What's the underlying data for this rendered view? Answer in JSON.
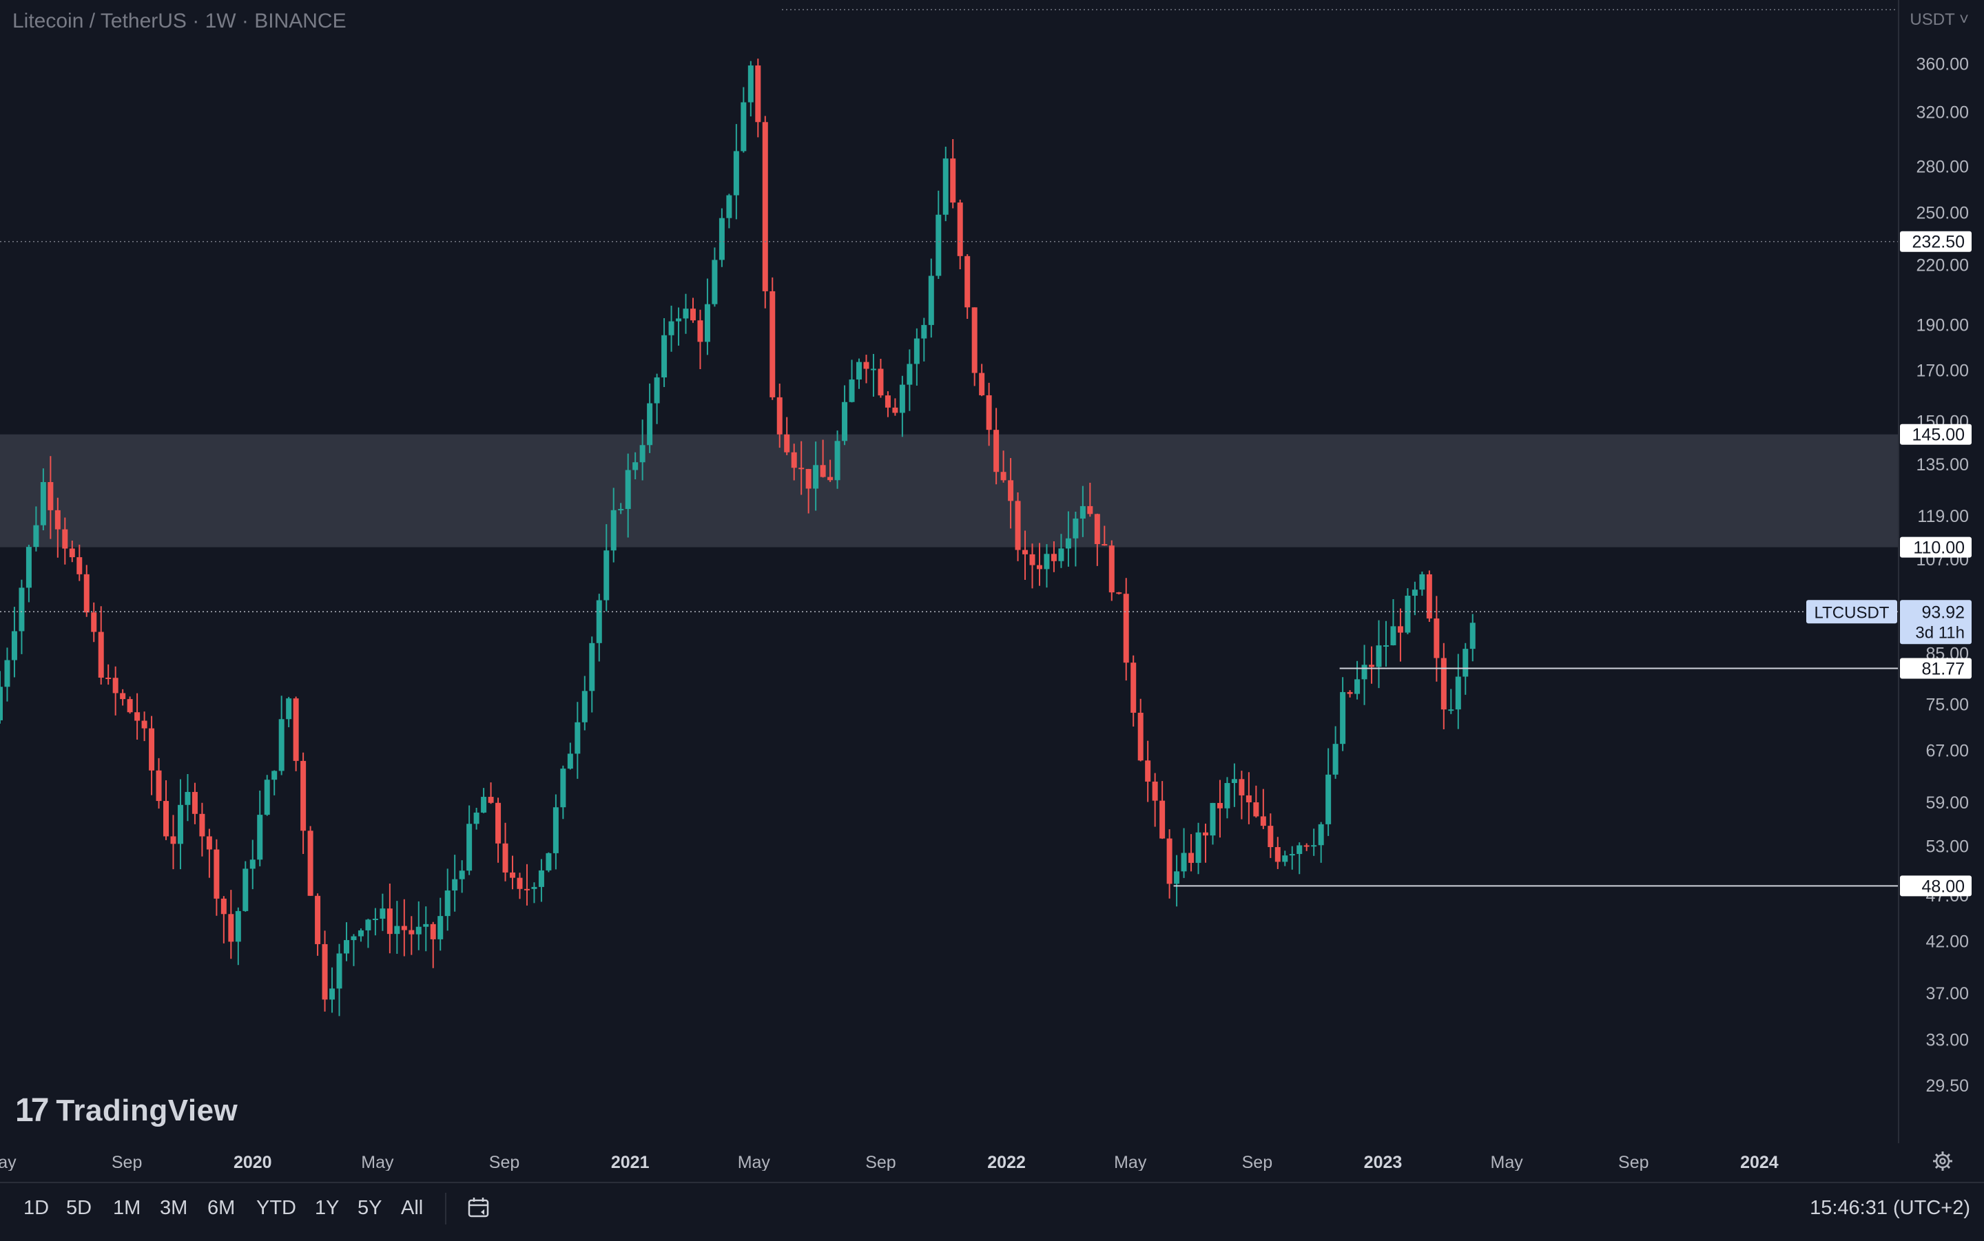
{
  "header": {
    "title": "Litecoin / TetherUS · 1W · BINANCE"
  },
  "currency_selector": "USDT",
  "logo_text": "TradingView",
  "time_ranges": [
    "1D",
    "5D",
    "1M",
    "3M",
    "6M",
    "YTD",
    "1Y",
    "5Y",
    "All"
  ],
  "clock": "15:46:31 (UTC+2)",
  "colors": {
    "up": "#26a69a",
    "down": "#ef5350",
    "bg": "#131722",
    "zone": "#363a45",
    "grid": "#1e222d"
  },
  "icons": {
    "settings": "gear-icon",
    "date_range": "calendar-icon",
    "logo": "tradingview-logo-icon"
  },
  "chart_data": {
    "type": "candlestick",
    "symbol": "LTCUSDT",
    "interval": "1W",
    "scale": "log",
    "ylim": [
      26,
      420
    ],
    "x_range": [
      "2019-05-01",
      "2024-05-15"
    ],
    "x_ticks": [
      {
        "label": "May",
        "date": "2019-05-01",
        "bold": false
      },
      {
        "label": "Sep",
        "date": "2019-09-01",
        "bold": false
      },
      {
        "label": "2020",
        "date": "2020-01-01",
        "bold": true
      },
      {
        "label": "May",
        "date": "2020-05-01",
        "bold": false
      },
      {
        "label": "Sep",
        "date": "2020-09-01",
        "bold": false
      },
      {
        "label": "2021",
        "date": "2021-01-01",
        "bold": true
      },
      {
        "label": "May",
        "date": "2021-05-01",
        "bold": false
      },
      {
        "label": "Sep",
        "date": "2021-09-01",
        "bold": false
      },
      {
        "label": "2022",
        "date": "2022-01-01",
        "bold": true
      },
      {
        "label": "May",
        "date": "2022-05-01",
        "bold": false
      },
      {
        "label": "Sep",
        "date": "2022-09-01",
        "bold": false
      },
      {
        "label": "2023",
        "date": "2023-01-01",
        "bold": true
      },
      {
        "label": "May",
        "date": "2023-05-01",
        "bold": false
      },
      {
        "label": "Sep",
        "date": "2023-09-01",
        "bold": false
      },
      {
        "label": "2024",
        "date": "2024-01-01",
        "bold": true
      }
    ],
    "y_ticks": [
      "360.00",
      "320.00",
      "280.00",
      "250.00",
      "220.00",
      "190.00",
      "170.00",
      "150.00",
      "135.00",
      "119.00",
      "107.00",
      "85.00",
      "75.00",
      "67.00",
      "59.00",
      "53.00",
      "47.00",
      "42.00",
      "37.00",
      "33.00",
      "29.50"
    ],
    "zone": {
      "from": 110,
      "to": 145
    },
    "horizontal_lines": [
      {
        "value": 232.5,
        "label": "232.50",
        "style": "dotted"
      },
      {
        "value": 145,
        "label": "145.00",
        "style": "none"
      },
      {
        "value": 110,
        "label": "110.00",
        "style": "none"
      },
      {
        "value": 81.77,
        "label": "81.77",
        "style": "solid",
        "from": "2022-11-20"
      },
      {
        "value": 48,
        "label": "48.00",
        "style": "solid",
        "from": "2022-06-12"
      }
    ],
    "last_price": {
      "symbol": "LTCUSDT",
      "value": 93.92,
      "label": "93.92",
      "countdown": "3d 11h"
    },
    "anchors": [
      {
        "date": "2019-05-01",
        "price": 72
      },
      {
        "date": "2019-06-20",
        "price": 130
      },
      {
        "date": "2019-07-15",
        "price": 108
      },
      {
        "date": "2019-08-20",
        "price": 78
      },
      {
        "date": "2019-09-20",
        "price": 72
      },
      {
        "date": "2019-10-20",
        "price": 53
      },
      {
        "date": "2019-11-10",
        "price": 61
      },
      {
        "date": "2019-12-18",
        "price": 42
      },
      {
        "date": "2020-02-12",
        "price": 76
      },
      {
        "date": "2020-03-16",
        "price": 37
      },
      {
        "date": "2020-04-25",
        "price": 45
      },
      {
        "date": "2020-06-30",
        "price": 42
      },
      {
        "date": "2020-08-20",
        "price": 60
      },
      {
        "date": "2020-09-20",
        "price": 46
      },
      {
        "date": "2020-10-20",
        "price": 52
      },
      {
        "date": "2020-11-25",
        "price": 80
      },
      {
        "date": "2020-12-25",
        "price": 120
      },
      {
        "date": "2021-01-25",
        "price": 150
      },
      {
        "date": "2021-02-20",
        "price": 200
      },
      {
        "date": "2021-03-20",
        "price": 185
      },
      {
        "date": "2021-05-09",
        "price": 380
      },
      {
        "date": "2021-05-23",
        "price": 160
      },
      {
        "date": "2021-06-25",
        "price": 130
      },
      {
        "date": "2021-07-20",
        "price": 130
      },
      {
        "date": "2021-08-20",
        "price": 180
      },
      {
        "date": "2021-09-20",
        "price": 155
      },
      {
        "date": "2021-10-20",
        "price": 190
      },
      {
        "date": "2021-11-10",
        "price": 285
      },
      {
        "date": "2021-12-10",
        "price": 165
      },
      {
        "date": "2022-01-25",
        "price": 105
      },
      {
        "date": "2022-02-20",
        "price": 108
      },
      {
        "date": "2022-03-25",
        "price": 125
      },
      {
        "date": "2022-04-25",
        "price": 98
      },
      {
        "date": "2022-05-20",
        "price": 65
      },
      {
        "date": "2022-06-18",
        "price": 48
      },
      {
        "date": "2022-08-15",
        "price": 62
      },
      {
        "date": "2022-09-25",
        "price": 52
      },
      {
        "date": "2022-11-08",
        "price": 55
      },
      {
        "date": "2022-11-30",
        "price": 75
      },
      {
        "date": "2023-01-20",
        "price": 90
      },
      {
        "date": "2023-02-15",
        "price": 100
      },
      {
        "date": "2023-03-10",
        "price": 72
      },
      {
        "date": "2023-04-03",
        "price": 93.92
      }
    ]
  }
}
